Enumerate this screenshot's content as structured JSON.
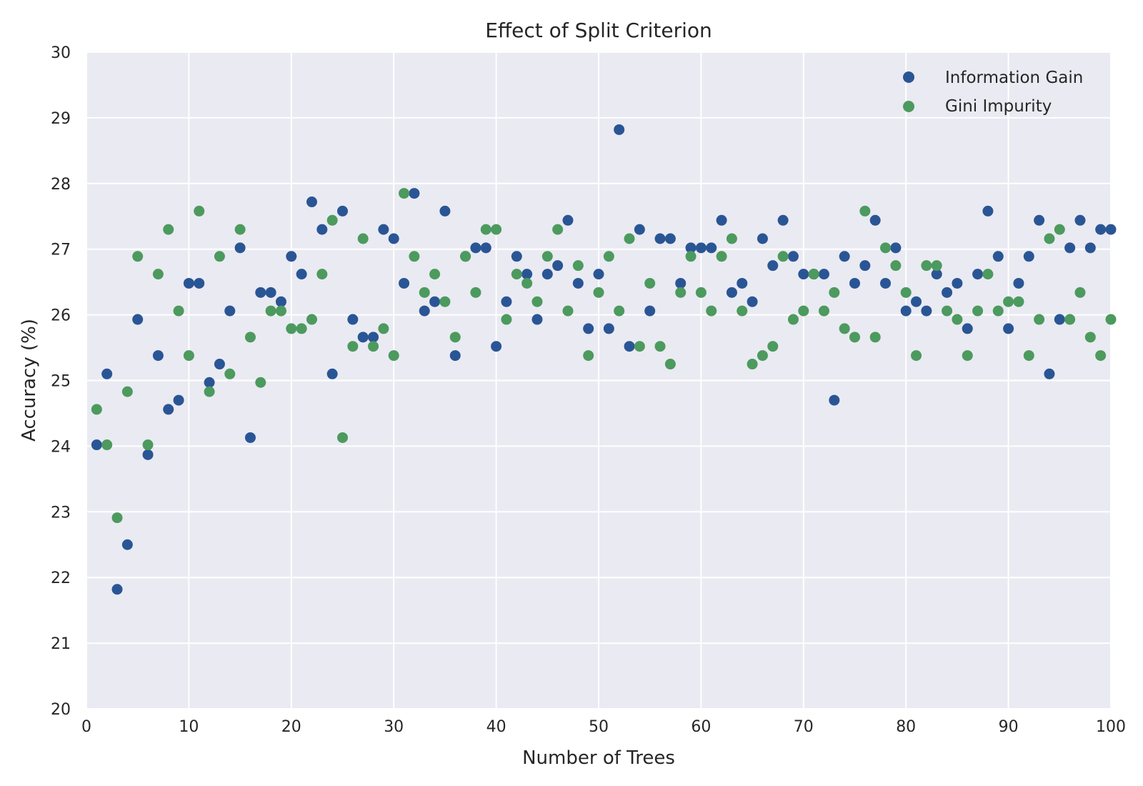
{
  "chart_data": {
    "type": "scatter",
    "title": "Effect of Split Criterion",
    "xlabel": "Number of Trees",
    "ylabel": "Accuracy (%)",
    "xlim": [
      0,
      100
    ],
    "ylim": [
      20,
      30
    ],
    "xticks": [
      0,
      10,
      20,
      30,
      40,
      50,
      60,
      70,
      80,
      90,
      100
    ],
    "yticks": [
      20,
      21,
      22,
      23,
      24,
      25,
      26,
      27,
      28,
      29,
      30
    ],
    "grid": true,
    "legend_position": "top-right",
    "background": "#eaeaf2",
    "x": [
      1,
      2,
      3,
      4,
      5,
      6,
      7,
      8,
      9,
      10,
      11,
      12,
      13,
      14,
      15,
      16,
      17,
      18,
      19,
      20,
      21,
      22,
      23,
      24,
      25,
      26,
      27,
      28,
      29,
      30,
      31,
      32,
      33,
      34,
      35,
      36,
      37,
      38,
      39,
      40,
      41,
      42,
      43,
      44,
      45,
      46,
      47,
      48,
      49,
      50,
      51,
      52,
      53,
      54,
      55,
      56,
      57,
      58,
      59,
      60,
      61,
      62,
      63,
      64,
      65,
      66,
      67,
      68,
      69,
      70,
      71,
      72,
      73,
      74,
      75,
      76,
      77,
      78,
      79,
      80,
      81,
      82,
      83,
      84,
      85,
      86,
      87,
      88,
      89,
      90,
      91,
      92,
      93,
      94,
      95,
      96,
      97,
      98,
      99,
      100
    ],
    "series": [
      {
        "name": "Information Gain",
        "color": "#2a5595",
        "values": [
          24.02,
          25.1,
          21.82,
          22.5,
          25.93,
          23.87,
          25.38,
          24.56,
          24.7,
          26.48,
          26.48,
          24.97,
          25.25,
          26.06,
          27.02,
          24.13,
          26.34,
          26.34,
          26.2,
          26.89,
          26.62,
          27.72,
          27.3,
          25.1,
          27.58,
          25.93,
          25.66,
          25.66,
          27.3,
          27.16,
          26.48,
          27.85,
          26.06,
          26.2,
          27.58,
          25.38,
          26.89,
          27.02,
          27.02,
          25.52,
          26.2,
          26.89,
          26.62,
          25.93,
          26.62,
          26.75,
          27.44,
          26.48,
          25.79,
          26.62,
          25.79,
          28.82,
          25.52,
          27.3,
          26.06,
          27.16,
          27.16,
          26.48,
          27.02,
          27.02,
          27.02,
          27.44,
          26.34,
          26.48,
          26.2,
          27.16,
          26.75,
          27.44,
          26.89,
          26.62,
          26.62,
          26.62,
          24.7,
          26.89,
          26.48,
          26.75,
          27.44,
          26.48,
          27.02,
          26.06,
          26.2,
          26.06,
          26.62,
          26.34,
          26.48,
          25.79,
          26.62,
          27.58,
          26.89,
          25.79,
          26.48,
          26.89,
          27.44,
          25.1,
          25.93,
          27.02,
          27.44,
          27.02,
          27.3,
          27.3
        ]
      },
      {
        "name": "Gini Impurity",
        "color": "#4c9a5e",
        "values": [
          24.56,
          24.02,
          22.91,
          24.83,
          26.89,
          24.02,
          26.62,
          27.3,
          26.06,
          25.38,
          27.58,
          24.83,
          26.89,
          25.1,
          27.3,
          25.66,
          24.97,
          26.06,
          26.06,
          25.79,
          25.79,
          25.93,
          26.62,
          27.44,
          24.13,
          25.52,
          27.16,
          25.52,
          25.79,
          25.38,
          27.85,
          26.89,
          26.34,
          26.62,
          26.2,
          25.66,
          26.89,
          26.34,
          27.3,
          27.3,
          25.93,
          26.62,
          26.48,
          26.2,
          26.89,
          27.3,
          26.06,
          26.75,
          25.38,
          26.34,
          26.89,
          26.06,
          27.16,
          25.52,
          26.48,
          25.52,
          25.25,
          26.34,
          26.89,
          26.34,
          26.06,
          26.89,
          27.16,
          26.06,
          25.25,
          25.38,
          25.52,
          26.89,
          25.93,
          26.06,
          26.62,
          26.06,
          26.34,
          25.79,
          25.66,
          27.58,
          25.66,
          27.02,
          26.75,
          26.34,
          25.38,
          26.75,
          26.75,
          26.06,
          25.93,
          25.38,
          26.06,
          26.62,
          26.06,
          26.2,
          26.2,
          25.38,
          25.93,
          27.16,
          27.3,
          25.93,
          26.34,
          25.66,
          25.38,
          25.93
        ]
      }
    ]
  }
}
